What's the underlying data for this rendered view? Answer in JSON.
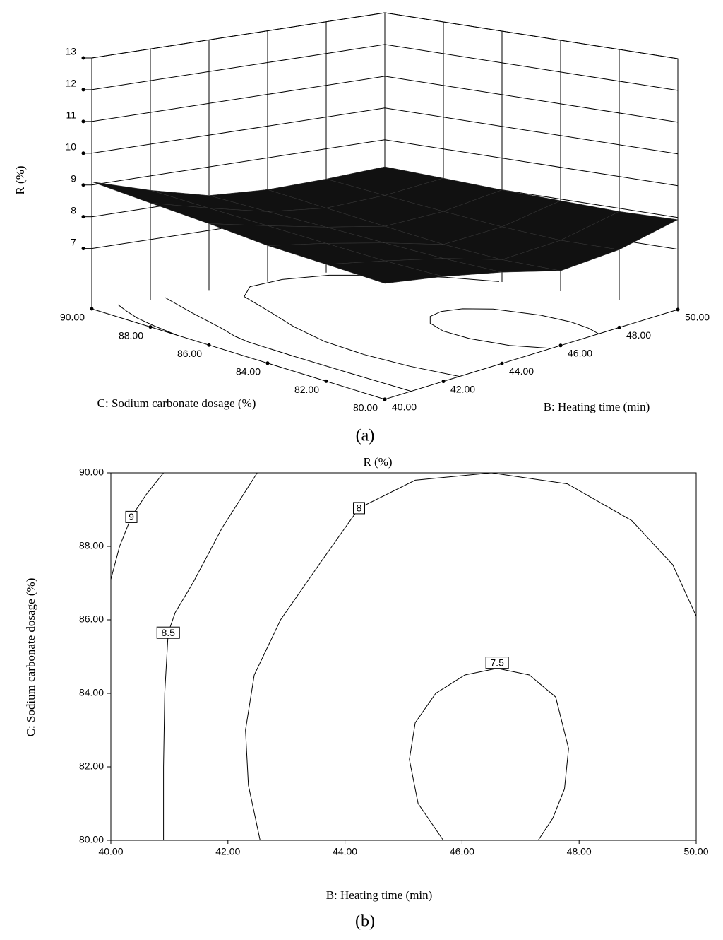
{
  "chart_data": [
    {
      "type": "surface3d",
      "zlabel": "R (%)",
      "xlabel": "B: Heating time (min)",
      "ylabel": "C: Sodium carbonate dosage (%)",
      "caption": "(a)",
      "xlim": [
        40,
        50
      ],
      "ylim": [
        80,
        90
      ],
      "zlim": [
        5.1,
        13
      ],
      "xticks": [
        {
          "value": 40,
          "label": "40.00"
        },
        {
          "value": 42,
          "label": "42.00"
        },
        {
          "value": 44,
          "label": "44.00"
        },
        {
          "value": 46,
          "label": "46.00"
        },
        {
          "value": 48,
          "label": "48.00"
        },
        {
          "value": 50,
          "label": "50.00"
        }
      ],
      "yticks": [
        {
          "value": 80,
          "label": "80.00"
        },
        {
          "value": 82,
          "label": "82.00"
        },
        {
          "value": 84,
          "label": "84.00"
        },
        {
          "value": 86,
          "label": "86.00"
        },
        {
          "value": 88,
          "label": "88.00"
        },
        {
          "value": 90,
          "label": "90.00"
        }
      ],
      "zticks": [
        7,
        8,
        9,
        10,
        11,
        12,
        13
      ],
      "color": "#111111",
      "z": [
        [
          8.75,
          8.4,
          7.97,
          7.45,
          7.55,
          7.93
        ],
        [
          8.78,
          8.38,
          7.95,
          7.4,
          7.5,
          7.9
        ],
        [
          8.8,
          8.42,
          7.98,
          7.48,
          7.58,
          7.95
        ],
        [
          8.92,
          8.46,
          8.02,
          7.65,
          7.72,
          8.0
        ],
        [
          9.0,
          8.5,
          8.05,
          7.82,
          7.88,
          8.08
        ],
        [
          9.1,
          8.55,
          8.1,
          8.0,
          8.05,
          8.15
        ]
      ]
    },
    {
      "type": "contour",
      "title": "R (%)",
      "xlabel": "B: Heating time (min)",
      "ylabel": "C: Sodium carbonate dosage  (%)",
      "caption": "(b)",
      "xlim": [
        40,
        50
      ],
      "ylim": [
        80,
        90
      ],
      "xticks": [
        {
          "value": 40,
          "label": "40.00"
        },
        {
          "value": 42,
          "label": "42.00"
        },
        {
          "value": 44,
          "label": "44.00"
        },
        {
          "value": 46,
          "label": "46.00"
        },
        {
          "value": 48,
          "label": "48.00"
        },
        {
          "value": 50,
          "label": "50.00"
        }
      ],
      "yticks": [
        {
          "value": 80,
          "label": "80.00"
        },
        {
          "value": 82,
          "label": "82.00"
        },
        {
          "value": 84,
          "label": "84.00"
        },
        {
          "value": 86,
          "label": "86.00"
        },
        {
          "value": 88,
          "label": "88.00"
        },
        {
          "value": 90,
          "label": "90.00"
        }
      ],
      "contours": [
        {
          "level": 9,
          "x": [
            40,
            40.15,
            40.35,
            40.6,
            40.9
          ],
          "y": [
            87.1,
            88,
            88.8,
            89.4,
            90
          ]
        },
        {
          "level": 8.5,
          "x": [
            42.5,
            41.9,
            41.4,
            41.1,
            40.98,
            40.92,
            40.9,
            40.9
          ],
          "y": [
            90,
            88.5,
            87,
            86.2,
            85.65,
            84,
            82,
            80
          ]
        },
        {
          "level": 8,
          "x": [
            42.55,
            42.35,
            42.3,
            42.45,
            42.9,
            43.6,
            44.24,
            45.2,
            46.5,
            47.8,
            48.9,
            49.6,
            50
          ],
          "y": [
            80,
            81.5,
            83,
            84.5,
            86,
            87.6,
            89.04,
            89.8,
            90,
            89.7,
            88.7,
            87.5,
            86.1
          ]
        },
        {
          "level": 7.5,
          "x": [
            45.68,
            45.25,
            45.1,
            45.2,
            45.55,
            46.05,
            46.6,
            47.15,
            47.6,
            47.82,
            47.75,
            47.55,
            47.3
          ],
          "y": [
            80,
            81,
            82.2,
            83.2,
            84,
            84.5,
            84.68,
            84.5,
            83.9,
            82.5,
            81.4,
            80.6,
            80
          ]
        }
      ]
    }
  ]
}
